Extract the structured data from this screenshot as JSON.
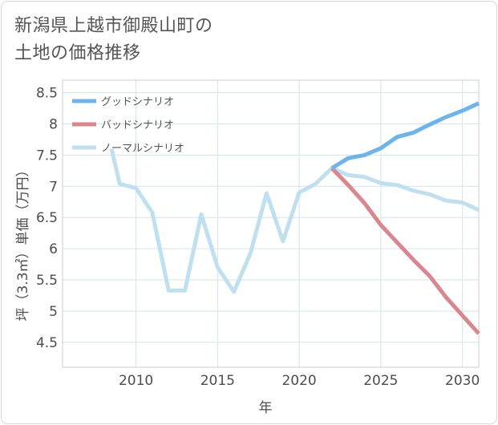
{
  "title_lines": [
    "新潟県上越市御殿山町の",
    "土地の価格推移"
  ],
  "chart_data": {
    "type": "line",
    "title": "新潟県上越市御殿山町の土地の価格推移",
    "xlabel": "年",
    "ylabel": "坪（3.3㎡）単価（万円）",
    "xlim": [
      2005.5,
      2031
    ],
    "ylim": [
      4.1,
      8.7
    ],
    "x_ticks": [
      2010,
      2015,
      2020,
      2025,
      2030
    ],
    "y_ticks": [
      4.5,
      5,
      5.5,
      6,
      6.5,
      7,
      7.5,
      8,
      8.5
    ],
    "grid": true,
    "legend_position": "top-left",
    "series": [
      {
        "name": "グッドシナリオ",
        "color": "#6cb4ee",
        "x": [
          2022,
          2023,
          2024,
          2025,
          2026,
          2027,
          2028,
          2029,
          2030,
          2031
        ],
        "values": [
          7.29,
          7.45,
          7.5,
          7.61,
          7.79,
          7.86,
          7.99,
          8.11,
          8.21,
          8.33
        ]
      },
      {
        "name": "バッドシナリオ",
        "color": "#d9868f",
        "x": [
          2022,
          2023,
          2024,
          2025,
          2026,
          2027,
          2028,
          2029,
          2030,
          2031
        ],
        "values": [
          7.29,
          7.02,
          6.73,
          6.38,
          6.1,
          5.82,
          5.56,
          5.22,
          4.93,
          4.64
        ]
      },
      {
        "name": "ノーマルシナリオ",
        "color": "#bfe0ee",
        "x": [
          2008.5,
          2009,
          2010,
          2011,
          2012,
          2013,
          2014,
          2015,
          2016,
          2017,
          2018,
          2019,
          2020,
          2021,
          2022,
          2023,
          2024,
          2025,
          2026,
          2027,
          2028,
          2029,
          2030,
          2031
        ],
        "values": [
          7.6,
          7.04,
          6.97,
          6.58,
          5.33,
          5.33,
          6.55,
          5.7,
          5.31,
          5.92,
          6.89,
          6.12,
          6.9,
          7.04,
          7.29,
          7.18,
          7.15,
          7.05,
          7.02,
          6.93,
          6.87,
          6.77,
          6.74,
          6.62
        ]
      }
    ]
  }
}
